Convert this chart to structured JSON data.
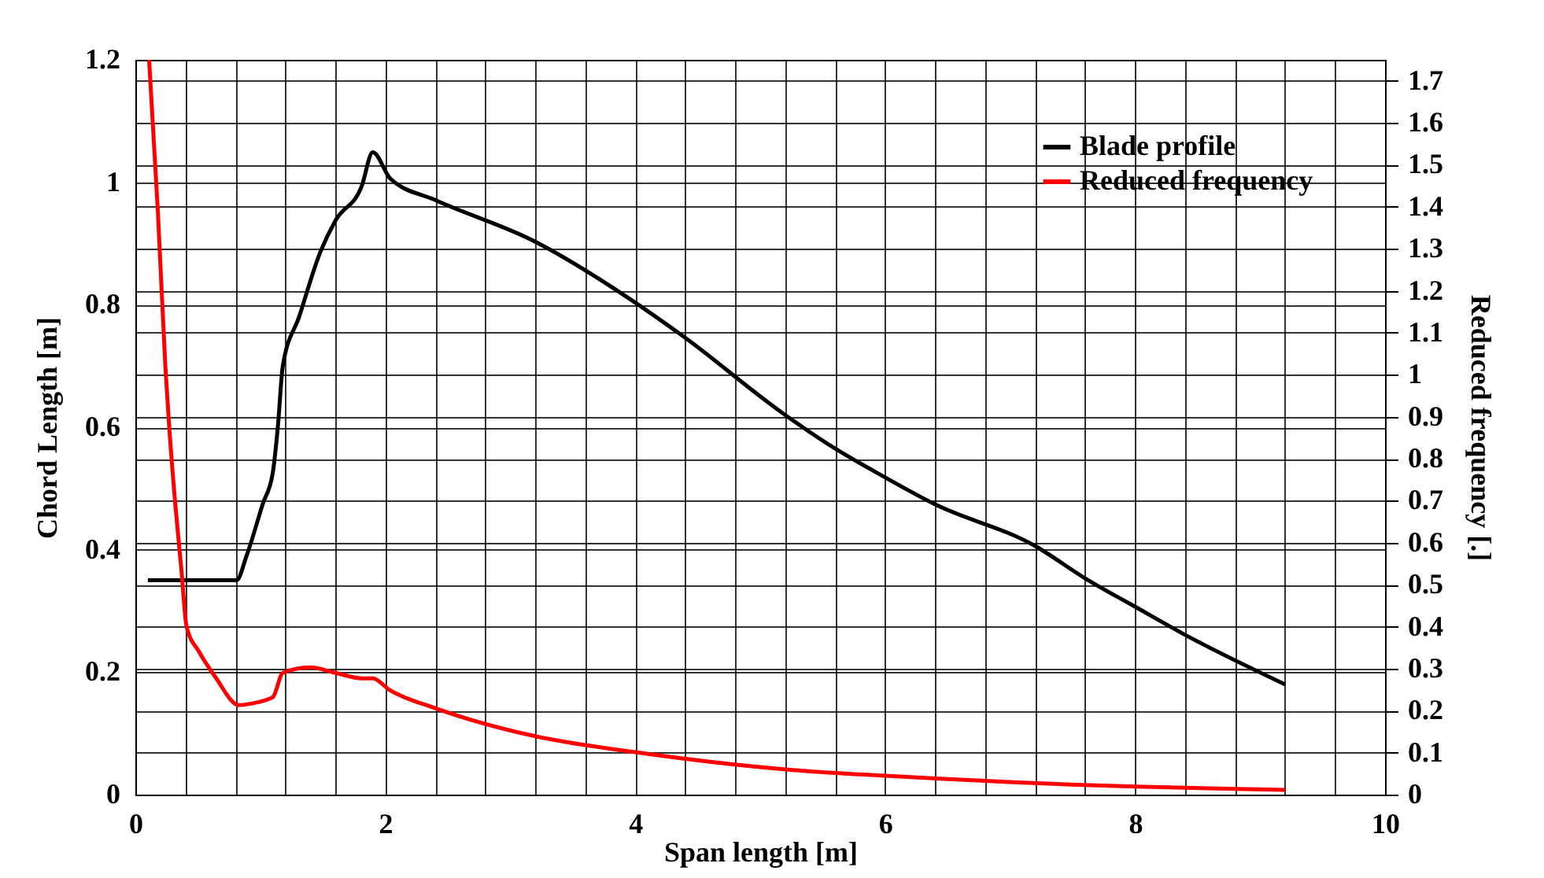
{
  "chart_data": {
    "type": "line",
    "xlabel": "Span length [m]",
    "ylabel": "Chord Length [m]",
    "y2label": "Reduced frequency [.]",
    "xlim": [
      0,
      10
    ],
    "xticks": [
      0,
      {
        "value": 0.4,
        "label": null
      },
      {
        "value": 0.8,
        "label": null
      },
      {
        "value": 1.2,
        "label": null
      },
      {
        "value": 1.6,
        "label": null
      },
      2,
      {
        "value": 2.4,
        "label": null
      },
      {
        "value": 2.8,
        "label": null
      },
      {
        "value": 3.2,
        "label": null
      },
      {
        "value": 3.6,
        "label": null
      },
      4,
      {
        "value": 4.4,
        "label": null
      },
      {
        "value": 4.8,
        "label": null
      },
      {
        "value": 5.2,
        "label": null
      },
      {
        "value": 5.6,
        "label": null
      },
      6,
      {
        "value": 6.4,
        "label": null
      },
      {
        "value": 6.8,
        "label": null
      },
      {
        "value": 7.2,
        "label": null
      },
      {
        "value": 7.6,
        "label": null
      },
      8,
      {
        "value": 8.4,
        "label": null
      },
      {
        "value": 8.8,
        "label": null
      },
      {
        "value": 9.2,
        "label": null
      },
      {
        "value": 9.6,
        "label": null
      },
      10
    ],
    "ylim": [
      0,
      1.2
    ],
    "yticks": [
      0,
      0.2,
      0.4,
      0.6,
      0.8,
      1,
      1.2
    ],
    "y2lim": [
      0,
      1.75
    ],
    "y2ticks": [
      0,
      0.1,
      0.2,
      0.3,
      0.4,
      0.5,
      0.6,
      0.7,
      0.8,
      0.9,
      1,
      1.1,
      1.2,
      1.3,
      1.4,
      1.5,
      1.6,
      1.7
    ],
    "grid": true,
    "legend": "top right",
    "line_style": "solid",
    "series": [
      {
        "name": "Blade profile",
        "color": "#000000",
        "x": [
          0.1,
          0.5,
          0.81,
          0.89,
          1.02,
          1.1,
          1.14,
          1.18,
          1.31,
          1.48,
          1.6,
          1.81,
          1.9,
          2.04,
          2.4,
          3.2,
          3.96,
          4.38,
          5.2,
          5.6,
          6.0,
          6.39,
          7.2,
          7.61,
          7.99,
          8.39,
          9.2
        ],
        "values": [
          0.35,
          0.35,
          0.35,
          0.39,
          0.475,
          0.526,
          0.6,
          0.7,
          0.78,
          0.886,
          0.937,
          0.993,
          1.049,
          1.006,
          0.971,
          0.903,
          0.809,
          0.749,
          0.62,
          0.565,
          0.518,
          0.475,
          0.406,
          0.352,
          0.308,
          0.262,
          0.18
        ]
      },
      {
        "name": "Reduced frequency",
        "color": "#ff0000",
        "axis": "y2",
        "x": [
          0.11,
          0.18,
          0.24,
          0.27,
          0.32,
          0.37,
          0.41,
          0.51,
          0.64,
          0.83,
          0.93,
          1.1,
          1.18,
          1.4,
          1.6,
          1.81,
          1.9,
          2.03,
          2.4,
          3.2,
          4.0,
          5.2,
          6.0,
          8.0,
          9.2
        ],
        "values": [
          1.75,
          1.39,
          1.02,
          0.88,
          0.69,
          0.53,
          0.4,
          0.34,
          0.28,
          0.213,
          0.217,
          0.232,
          0.29,
          0.303,
          0.29,
          0.277,
          0.277,
          0.25,
          0.206,
          0.139,
          0.101,
          0.06,
          0.045,
          0.019,
          0.011
        ]
      }
    ]
  }
}
